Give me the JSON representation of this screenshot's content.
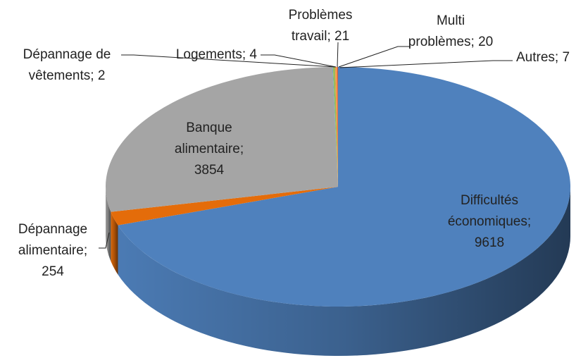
{
  "chart_data": {
    "type": "pie3d",
    "values": [
      9618,
      254,
      3854,
      2,
      4,
      21,
      20,
      7
    ],
    "value_labels": [
      [
        "Difficultés",
        "économiques;",
        "9618"
      ],
      [
        "Dépannage",
        "alimentaire;",
        "254"
      ],
      [
        "Banque",
        "alimentaire;",
        "3854"
      ],
      [
        "Dépannage de",
        "vêtements; 2"
      ],
      [
        "Logements; 4"
      ],
      [
        "Problèmes",
        "travail; 21"
      ],
      [
        "Multi",
        "problèmes; 20"
      ],
      [
        "Autres; 7"
      ]
    ],
    "colors": [
      "#4f81bd",
      "#e46c0a",
      "#a5a5a5",
      "#8064a2",
      "#4bacc6",
      "#9bbb59",
      "#f79646",
      "#c0504d"
    ]
  }
}
